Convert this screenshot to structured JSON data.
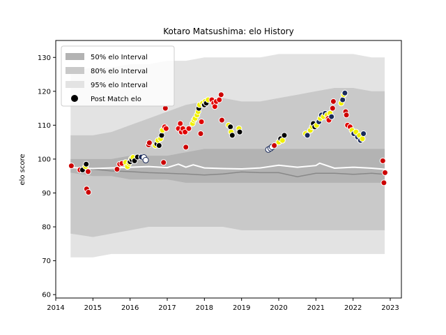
{
  "chart_data": {
    "type": "scatter",
    "title": "Kotaro Matsushima: elo History",
    "xlabel": "",
    "ylabel": "elo score",
    "xlim": [
      2014.0,
      2023.3
    ],
    "ylim": [
      59,
      135
    ],
    "x_ticks": [
      2014,
      2015,
      2016,
      2017,
      2018,
      2019,
      2020,
      2021,
      2022,
      2023
    ],
    "y_ticks": [
      60,
      70,
      80,
      90,
      100,
      110,
      120,
      130
    ],
    "grid": false,
    "legend": {
      "placement": "top-left",
      "entries": [
        {
          "label": "50% elo Interval",
          "color": "#b3b3b3"
        },
        {
          "label": "80% elo Interval",
          "color": "#c9c9c9"
        },
        {
          "label": "95% elo Interval",
          "color": "#e3e3e3"
        },
        {
          "label": "Post Match elo",
          "color": "#000000"
        }
      ]
    },
    "colors": {
      "win": "#e00000",
      "loss": "#cc0000",
      "draw_gold": "#f0f000",
      "navy": "#1a2a5a",
      "median_line": "#ffffff",
      "trend_line": "#888888"
    },
    "bands": {
      "x": [
        2014.4,
        2015.0,
        2015.5,
        2016.0,
        2016.5,
        2017.0,
        2017.5,
        2018.0,
        2018.5,
        2019.0,
        2019.5,
        2020.0,
        2020.5,
        2021.0,
        2021.5,
        2022.0,
        2022.5,
        2022.85
      ],
      "p95_high": [
        126,
        127,
        127,
        128,
        128,
        129,
        129,
        130,
        130,
        130,
        130,
        131,
        131,
        131,
        131,
        131,
        130,
        130
      ],
      "p80_high": [
        107,
        107,
        108,
        110,
        112,
        114,
        116,
        117,
        118,
        117,
        117,
        118,
        119,
        120,
        121,
        121,
        120,
        120
      ],
      "p50_high": [
        100,
        100,
        100,
        101,
        101,
        101,
        102,
        103,
        103,
        103,
        103,
        103,
        103,
        103,
        103,
        103,
        103,
        103
      ],
      "p50_low": [
        96,
        95,
        95,
        94,
        94,
        94,
        93,
        93,
        93,
        93,
        93,
        93,
        93,
        93,
        93,
        93,
        93,
        93
      ],
      "p80_low": [
        78,
        77,
        78,
        79,
        80,
        80,
        80,
        80,
        80,
        79,
        79,
        79,
        79,
        79,
        79,
        79,
        79,
        79
      ],
      "p95_low": [
        71,
        71,
        72,
        72,
        72,
        72,
        72,
        72,
        72,
        72,
        72,
        72,
        72,
        72,
        72,
        72,
        72,
        72
      ]
    },
    "median_line": {
      "x": [
        2014.4,
        2015.0,
        2015.5,
        2016.0,
        2016.5,
        2017.0,
        2017.3,
        2017.5,
        2017.7,
        2018.0,
        2018.5,
        2019.0,
        2019.5,
        2020.0,
        2020.5,
        2021.0,
        2021.1,
        2021.5,
        2022.0,
        2022.5,
        2022.85
      ],
      "y": [
        97.5,
        97.2,
        97.4,
        97.6,
        97.8,
        97.5,
        98.5,
        97.6,
        98.3,
        97.4,
        97.2,
        97.1,
        97.4,
        98.2,
        97.6,
        98.1,
        98.8,
        97.3,
        97.6,
        97.3,
        97.0
      ]
    },
    "trend_line": {
      "x": [
        2014.4,
        2015.0,
        2015.5,
        2016.0,
        2016.5,
        2017.0,
        2017.5,
        2018.0,
        2018.5,
        2019.0,
        2019.5,
        2020.0,
        2020.5,
        2021.0,
        2021.5,
        2022.0,
        2022.5,
        2022.85
      ],
      "y": [
        97.5,
        97.0,
        96.5,
        96.3,
        96.0,
        95.8,
        95.6,
        95.3,
        95.6,
        96.2,
        96.0,
        96.0,
        94.8,
        95.8,
        95.8,
        95.5,
        95.8,
        95.5
      ]
    },
    "points": [
      {
        "x": 2014.42,
        "y": 98.0,
        "c": "#cc0000"
      },
      {
        "x": 2014.65,
        "y": 96.8,
        "c": "#e00000"
      },
      {
        "x": 2014.72,
        "y": 96.8,
        "c": "#000000"
      },
      {
        "x": 2014.8,
        "y": 97.8,
        "c": "#f0f000"
      },
      {
        "x": 2014.82,
        "y": 98.5,
        "c": "#000000"
      },
      {
        "x": 2014.83,
        "y": 91.2,
        "c": "#cc0000"
      },
      {
        "x": 2014.88,
        "y": 90.2,
        "c": "#cc0000"
      },
      {
        "x": 2014.87,
        "y": 96.3,
        "c": "#cc0000"
      },
      {
        "x": 2015.65,
        "y": 97.0,
        "c": "#cc0000"
      },
      {
        "x": 2015.72,
        "y": 98.5,
        "c": "#e00000"
      },
      {
        "x": 2015.78,
        "y": 98.7,
        "c": "#e00000"
      },
      {
        "x": 2015.88,
        "y": 99.0,
        "c": "#f0f000"
      },
      {
        "x": 2015.93,
        "y": 97.8,
        "c": "#f0f000"
      },
      {
        "x": 2015.97,
        "y": 98.7,
        "c": "#f0f000"
      },
      {
        "x": 2016.0,
        "y": 99.2,
        "c": "#000000"
      },
      {
        "x": 2016.03,
        "y": 100.0,
        "c": "#f0f000"
      },
      {
        "x": 2016.05,
        "y": 99.8,
        "c": "#000000"
      },
      {
        "x": 2016.08,
        "y": 100.5,
        "c": "#f0f000"
      },
      {
        "x": 2016.12,
        "y": 99.5,
        "c": "#000000"
      },
      {
        "x": 2016.2,
        "y": 100.6,
        "c": "#000000"
      },
      {
        "x": 2016.3,
        "y": 100.6,
        "c": "#1a2a5a"
      },
      {
        "x": 2016.37,
        "y": 100.5,
        "c": "#ffffff"
      },
      {
        "x": 2016.42,
        "y": 99.7,
        "c": "#ffffff"
      },
      {
        "x": 2016.5,
        "y": 104.2,
        "c": "#cc0000"
      },
      {
        "x": 2016.52,
        "y": 104.8,
        "c": "#cc0000"
      },
      {
        "x": 2016.68,
        "y": 104.0,
        "c": "#f0f000"
      },
      {
        "x": 2016.72,
        "y": 104.5,
        "c": "#000000"
      },
      {
        "x": 2016.75,
        "y": 105.5,
        "c": "#f0f000"
      },
      {
        "x": 2016.78,
        "y": 104.0,
        "c": "#000000"
      },
      {
        "x": 2016.82,
        "y": 106.0,
        "c": "#f0f000"
      },
      {
        "x": 2016.85,
        "y": 107.0,
        "c": "#000000"
      },
      {
        "x": 2016.87,
        "y": 108.5,
        "c": "#f0f000"
      },
      {
        "x": 2016.9,
        "y": 99.0,
        "c": "#cc0000"
      },
      {
        "x": 2016.93,
        "y": 109.5,
        "c": "#e00000"
      },
      {
        "x": 2016.95,
        "y": 115.0,
        "c": "#cc0000"
      },
      {
        "x": 2016.97,
        "y": 109.0,
        "c": "#e00000"
      },
      {
        "x": 2017.3,
        "y": 109.0,
        "c": "#e00000"
      },
      {
        "x": 2017.35,
        "y": 110.5,
        "c": "#e00000"
      },
      {
        "x": 2017.38,
        "y": 108.0,
        "c": "#e00000"
      },
      {
        "x": 2017.42,
        "y": 109.0,
        "c": "#e00000"
      },
      {
        "x": 2017.48,
        "y": 108.0,
        "c": "#e00000"
      },
      {
        "x": 2017.5,
        "y": 103.5,
        "c": "#cc0000"
      },
      {
        "x": 2017.58,
        "y": 109.0,
        "c": "#e00000"
      },
      {
        "x": 2017.68,
        "y": 110.5,
        "c": "#f0f000"
      },
      {
        "x": 2017.72,
        "y": 111.5,
        "c": "#f0f000"
      },
      {
        "x": 2017.75,
        "y": 112.0,
        "c": "#f0f000"
      },
      {
        "x": 2017.8,
        "y": 113.0,
        "c": "#f0f000"
      },
      {
        "x": 2017.83,
        "y": 114.0,
        "c": "#f0f000"
      },
      {
        "x": 2017.85,
        "y": 115.0,
        "c": "#000000"
      },
      {
        "x": 2017.87,
        "y": 116.0,
        "c": "#f0f000"
      },
      {
        "x": 2017.9,
        "y": 107.5,
        "c": "#cc0000"
      },
      {
        "x": 2017.92,
        "y": 111.0,
        "c": "#e00000"
      },
      {
        "x": 2017.95,
        "y": 116.5,
        "c": "#f0f000"
      },
      {
        "x": 2018.0,
        "y": 116.0,
        "c": "#000000"
      },
      {
        "x": 2018.02,
        "y": 117.0,
        "c": "#f0f000"
      },
      {
        "x": 2018.05,
        "y": 116.5,
        "c": "#000000"
      },
      {
        "x": 2018.1,
        "y": 117.5,
        "c": "#f0f000"
      },
      {
        "x": 2018.2,
        "y": 117.5,
        "c": "#e00000"
      },
      {
        "x": 2018.25,
        "y": 116.5,
        "c": "#e00000"
      },
      {
        "x": 2018.28,
        "y": 115.5,
        "c": "#e00000"
      },
      {
        "x": 2018.32,
        "y": 117.0,
        "c": "#e00000"
      },
      {
        "x": 2018.4,
        "y": 117.5,
        "c": "#e00000"
      },
      {
        "x": 2018.45,
        "y": 119.0,
        "c": "#cc0000"
      },
      {
        "x": 2018.47,
        "y": 111.5,
        "c": "#cc0000"
      },
      {
        "x": 2018.65,
        "y": 110.0,
        "c": "#f0f000"
      },
      {
        "x": 2018.7,
        "y": 109.5,
        "c": "#000000"
      },
      {
        "x": 2018.72,
        "y": 108.0,
        "c": "#f0f000"
      },
      {
        "x": 2018.75,
        "y": 107.0,
        "c": "#000000"
      },
      {
        "x": 2018.93,
        "y": 109.0,
        "c": "#f0f000"
      },
      {
        "x": 2018.95,
        "y": 108.0,
        "c": "#000000"
      },
      {
        "x": 2019.72,
        "y": 102.8,
        "c": "#ffffff"
      },
      {
        "x": 2019.78,
        "y": 103.2,
        "c": "#ffffff"
      },
      {
        "x": 2019.82,
        "y": 103.6,
        "c": "#ffffff"
      },
      {
        "x": 2019.88,
        "y": 104.0,
        "c": "#cc0000"
      },
      {
        "x": 2020.0,
        "y": 105.0,
        "c": "#f0f000"
      },
      {
        "x": 2020.05,
        "y": 106.0,
        "c": "#000000"
      },
      {
        "x": 2020.1,
        "y": 105.5,
        "c": "#f0f000"
      },
      {
        "x": 2020.15,
        "y": 107.0,
        "c": "#000000"
      },
      {
        "x": 2020.72,
        "y": 107.5,
        "c": "#f0f000"
      },
      {
        "x": 2020.77,
        "y": 107.0,
        "c": "#1a2a5a"
      },
      {
        "x": 2020.85,
        "y": 108.5,
        "c": "#f0f000"
      },
      {
        "x": 2020.9,
        "y": 109.5,
        "c": "#f0f000"
      },
      {
        "x": 2020.93,
        "y": 110.5,
        "c": "#000000"
      },
      {
        "x": 2020.97,
        "y": 109.5,
        "c": "#000000"
      },
      {
        "x": 2021.02,
        "y": 110.0,
        "c": "#f0f000"
      },
      {
        "x": 2021.08,
        "y": 111.0,
        "c": "#1a2a5a"
      },
      {
        "x": 2021.12,
        "y": 112.0,
        "c": "#f0f000"
      },
      {
        "x": 2021.15,
        "y": 113.0,
        "c": "#1a2a5a"
      },
      {
        "x": 2021.2,
        "y": 112.5,
        "c": "#f0f000"
      },
      {
        "x": 2021.25,
        "y": 113.5,
        "c": "#1a2a5a"
      },
      {
        "x": 2021.3,
        "y": 113.0,
        "c": "#f0f000"
      },
      {
        "x": 2021.33,
        "y": 112.0,
        "c": "#e00000"
      },
      {
        "x": 2021.35,
        "y": 111.5,
        "c": "#e00000"
      },
      {
        "x": 2021.38,
        "y": 113.5,
        "c": "#f0f000"
      },
      {
        "x": 2021.42,
        "y": 112.5,
        "c": "#1a2a5a"
      },
      {
        "x": 2021.45,
        "y": 115.0,
        "c": "#cc0000"
      },
      {
        "x": 2021.47,
        "y": 117.0,
        "c": "#cc0000"
      },
      {
        "x": 2021.68,
        "y": 116.5,
        "c": "#f0f000"
      },
      {
        "x": 2021.72,
        "y": 117.5,
        "c": "#1a2a5a"
      },
      {
        "x": 2021.75,
        "y": 119.0,
        "c": "#f0f000"
      },
      {
        "x": 2021.78,
        "y": 119.5,
        "c": "#1a2a5a"
      },
      {
        "x": 2021.8,
        "y": 114.0,
        "c": "#cc0000"
      },
      {
        "x": 2021.82,
        "y": 113.0,
        "c": "#cc0000"
      },
      {
        "x": 2021.85,
        "y": 110.0,
        "c": "#e00000"
      },
      {
        "x": 2021.92,
        "y": 109.5,
        "c": "#e00000"
      },
      {
        "x": 2021.97,
        "y": 108.5,
        "c": "#f0f000"
      },
      {
        "x": 2022.02,
        "y": 107.5,
        "c": "#1a2a5a"
      },
      {
        "x": 2022.08,
        "y": 108.0,
        "c": "#f0f000"
      },
      {
        "x": 2022.12,
        "y": 106.5,
        "c": "#1a2a5a"
      },
      {
        "x": 2022.17,
        "y": 107.0,
        "c": "#f0f000"
      },
      {
        "x": 2022.2,
        "y": 105.5,
        "c": "#1a2a5a"
      },
      {
        "x": 2022.25,
        "y": 106.0,
        "c": "#f0f000"
      },
      {
        "x": 2022.28,
        "y": 107.5,
        "c": "#1a2a5a"
      },
      {
        "x": 2022.8,
        "y": 99.5,
        "c": "#cc0000"
      },
      {
        "x": 2022.83,
        "y": 93.0,
        "c": "#cc0000"
      },
      {
        "x": 2022.86,
        "y": 96.0,
        "c": "#cc0000"
      }
    ]
  }
}
